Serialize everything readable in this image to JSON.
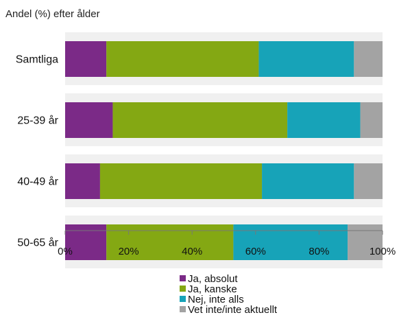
{
  "chart_data": {
    "type": "bar",
    "orientation": "horizontal",
    "stacked": true,
    "title": "Andel (%) efter ålder",
    "categories": [
      "Samtliga",
      "25-39 år",
      "40-49 år",
      "50-65 år"
    ],
    "series": [
      {
        "name": "Ja, absolut",
        "color": "#7b2a87",
        "values": [
          13,
          15,
          11,
          13
        ]
      },
      {
        "name": "Ja, kanske",
        "color": "#84a813",
        "values": [
          48,
          55,
          51,
          40
        ]
      },
      {
        "name": "Nej, inte alls",
        "color": "#17a3b8",
        "values": [
          30,
          23,
          29,
          36
        ]
      },
      {
        "name": "Vet inte/inte aktuellt",
        "color": "#a3a3a3",
        "values": [
          9,
          7,
          9,
          11
        ]
      }
    ],
    "xlim": [
      0,
      100
    ],
    "xticks": [
      0,
      20,
      40,
      60,
      80,
      100
    ],
    "xtick_labels": [
      "0%",
      "20%",
      "40%",
      "60%",
      "80%",
      "100%"
    ],
    "legend_position": "bottom",
    "band_color": "#f0f0f0"
  }
}
